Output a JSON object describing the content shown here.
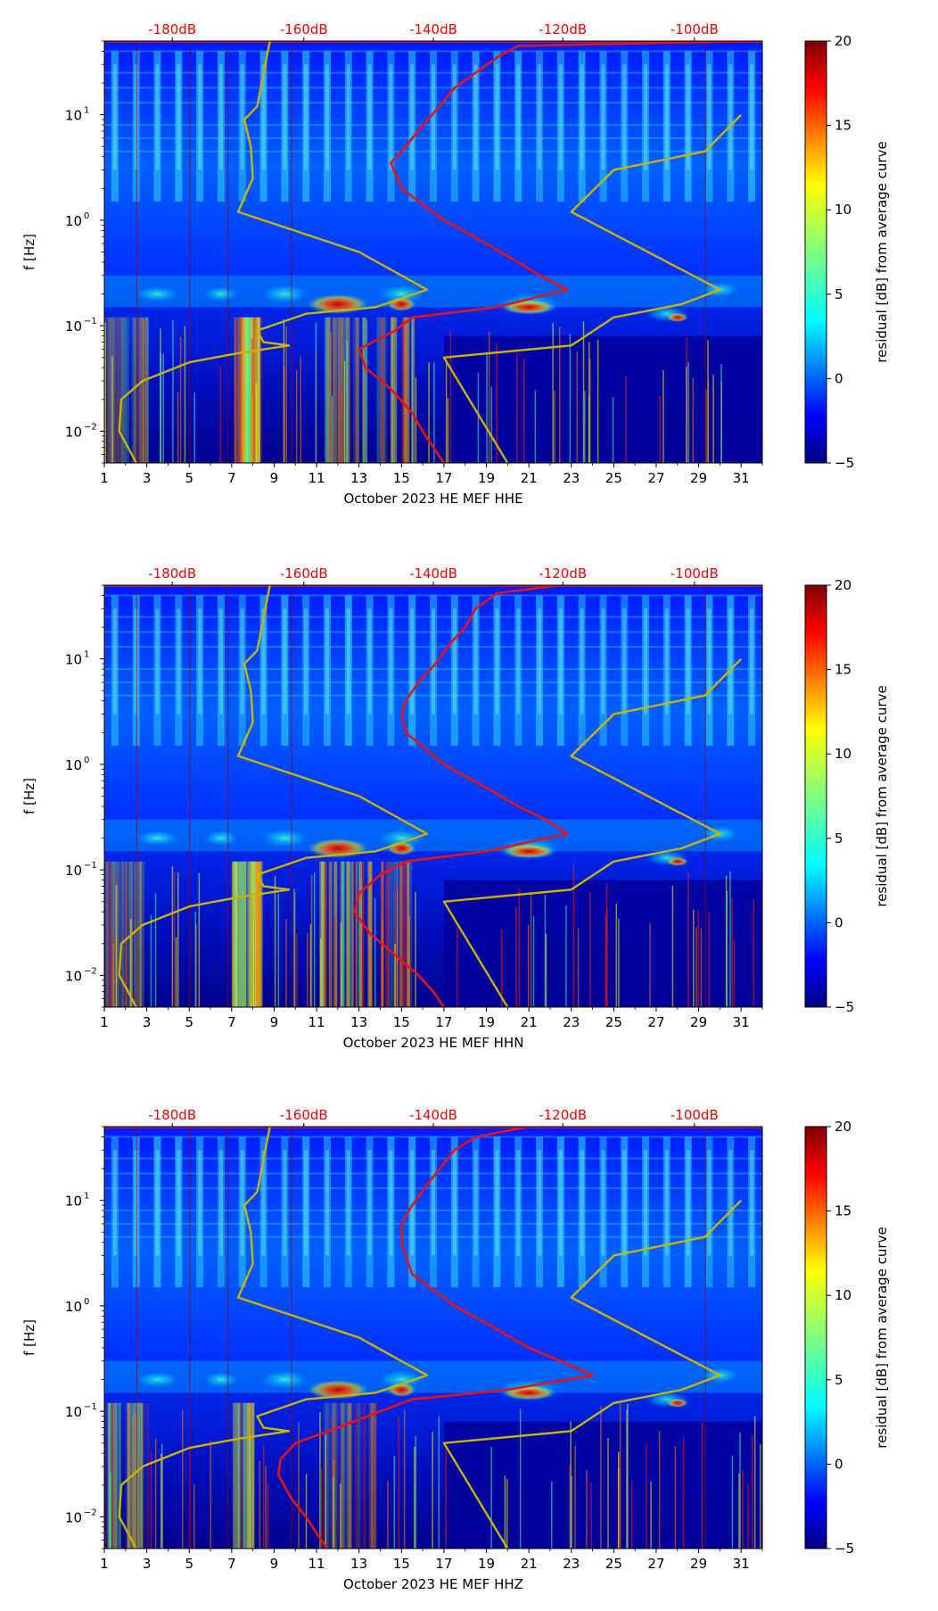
{
  "figure_title": "",
  "chart_data": [
    {
      "type": "heatmap",
      "channel": "HHE",
      "xlabel": "October 2023 HE MEF  HHE",
      "ylabel": "f [Hz]",
      "colorbar_label": "residual [dB] from average curve",
      "x_ticks": [
        "1",
        "3",
        "5",
        "7",
        "9",
        "11",
        "13",
        "15",
        "17",
        "19",
        "21",
        "23",
        "25",
        "27",
        "29",
        "31"
      ],
      "y_ticks": [
        {
          "value": 10,
          "label": "10",
          "exp": "1"
        },
        {
          "value": 1,
          "label": "10",
          "exp": "0"
        },
        {
          "value": 0.1,
          "label": "10",
          "exp": "−1"
        },
        {
          "value": 0.01,
          "label": "10",
          "exp": "−2"
        }
      ],
      "top_ticks": [
        "-180dB",
        "-160dB",
        "-140dB",
        "-120dB",
        "-100dB"
      ],
      "top_tick_days": [
        4.2,
        10.4,
        16.5,
        22.6,
        28.8
      ],
      "colorbar_ticks": [
        "20",
        "15",
        "10",
        "5",
        "0",
        "−5"
      ],
      "colorbar_range": [
        -5,
        20
      ],
      "xlim": [
        1,
        32
      ],
      "ylim": [
        0.005,
        50
      ],
      "red_curve": {
        "name": "average curve",
        "f": [
          50,
          45,
          35,
          25,
          18,
          12,
          8,
          5,
          3.5,
          2,
          1,
          0.6,
          0.4,
          0.3,
          0.22,
          0.15,
          0.12,
          0.09,
          0.06,
          0.04,
          0.025,
          0.015,
          0.01,
          0.007,
          0.005
        ],
        "day": [
          31.5,
          20.5,
          19.5,
          18.5,
          17.5,
          16.8,
          16.0,
          15.2,
          14.5,
          15.0,
          17.0,
          19.0,
          20.5,
          21.5,
          22.8,
          19.5,
          15.5,
          14.7,
          13.0,
          13.3,
          14.5,
          15.5,
          16.0,
          16.5,
          17.0
        ]
      },
      "yellow_curves": [
        {
          "name": "low noise model",
          "f": [
            50,
            12,
            9,
            5,
            2.5,
            1.2,
            0.5,
            0.22,
            0.15,
            0.13,
            0.09,
            0.07,
            0.065,
            0.055,
            0.045,
            0.03,
            0.02,
            0.01,
            0.006,
            0.005
          ],
          "day": [
            8.8,
            8.2,
            7.6,
            7.9,
            8.0,
            7.3,
            13.0,
            16.2,
            13.8,
            10.5,
            8.2,
            8.5,
            9.7,
            7.3,
            5.0,
            2.8,
            1.8,
            1.7,
            2.3,
            2.5
          ]
        },
        {
          "name": "high noise model",
          "f": [
            10,
            4.5,
            3,
            1.2,
            0.22,
            0.16,
            0.12,
            0.065,
            0.05,
            0.005
          ],
          "day": [
            31.0,
            29.3,
            25.0,
            23.0,
            30.0,
            28.2,
            25.0,
            23.0,
            17.0,
            20.0
          ]
        }
      ]
    },
    {
      "type": "heatmap",
      "channel": "HHN",
      "xlabel": "October 2023 HE MEF  HHN",
      "ylabel": "f [Hz]",
      "colorbar_label": "residual [dB] from average curve",
      "x_ticks": [
        "1",
        "3",
        "5",
        "7",
        "9",
        "11",
        "13",
        "15",
        "17",
        "19",
        "21",
        "23",
        "25",
        "27",
        "29",
        "31"
      ],
      "y_ticks": [
        {
          "value": 10,
          "label": "10",
          "exp": "1"
        },
        {
          "value": 1,
          "label": "10",
          "exp": "0"
        },
        {
          "value": 0.1,
          "label": "10",
          "exp": "−1"
        },
        {
          "value": 0.01,
          "label": "10",
          "exp": "−2"
        }
      ],
      "top_ticks": [
        "-180dB",
        "-160dB",
        "-140dB",
        "-120dB",
        "-100dB"
      ],
      "top_tick_days": [
        4.2,
        10.4,
        16.5,
        22.6,
        28.8
      ],
      "colorbar_ticks": [
        "20",
        "15",
        "10",
        "5",
        "0",
        "−5"
      ],
      "colorbar_range": [
        -5,
        20
      ],
      "xlim": [
        1,
        32
      ],
      "ylim": [
        0.005,
        50
      ],
      "red_curve": {
        "name": "average curve",
        "f": [
          50,
          42,
          30,
          20,
          14,
          9,
          6,
          4,
          3,
          2,
          1,
          0.6,
          0.4,
          0.3,
          0.22,
          0.15,
          0.12,
          0.09,
          0.06,
          0.04,
          0.025,
          0.015,
          0.01,
          0.007,
          0.005
        ],
        "day": [
          22.5,
          19.5,
          18.5,
          18.0,
          17.3,
          16.6,
          15.8,
          15.2,
          15.0,
          15.2,
          17.0,
          19.0,
          20.5,
          21.8,
          22.8,
          19.0,
          15.2,
          14.0,
          13.0,
          12.8,
          13.5,
          14.8,
          15.8,
          16.5,
          17.0
        ]
      },
      "yellow_curves": [
        {
          "name": "low noise model",
          "f": [
            50,
            12,
            9,
            5,
            2.5,
            1.2,
            0.5,
            0.22,
            0.15,
            0.13,
            0.09,
            0.07,
            0.065,
            0.055,
            0.045,
            0.03,
            0.02,
            0.01,
            0.006,
            0.005
          ],
          "day": [
            8.8,
            8.2,
            7.6,
            7.9,
            8.0,
            7.3,
            13.0,
            16.2,
            13.8,
            10.5,
            8.2,
            8.5,
            9.7,
            7.3,
            5.0,
            2.8,
            1.8,
            1.7,
            2.3,
            2.5
          ]
        },
        {
          "name": "high noise model",
          "f": [
            10,
            4.5,
            3,
            1.2,
            0.22,
            0.16,
            0.12,
            0.065,
            0.05,
            0.005
          ],
          "day": [
            31.0,
            29.3,
            25.0,
            23.0,
            30.0,
            28.2,
            25.0,
            23.0,
            17.0,
            20.0
          ]
        }
      ]
    },
    {
      "type": "heatmap",
      "channel": "HHZ",
      "xlabel": "October 2023 HE MEF  HHZ",
      "ylabel": "f [Hz]",
      "colorbar_label": "residual [dB] from average curve",
      "x_ticks": [
        "1",
        "3",
        "5",
        "7",
        "9",
        "11",
        "13",
        "15",
        "17",
        "19",
        "21",
        "23",
        "25",
        "27",
        "29",
        "31"
      ],
      "y_ticks": [
        {
          "value": 10,
          "label": "10",
          "exp": "1"
        },
        {
          "value": 1,
          "label": "10",
          "exp": "0"
        },
        {
          "value": 0.1,
          "label": "10",
          "exp": "−1"
        },
        {
          "value": 0.01,
          "label": "10",
          "exp": "−2"
        }
      ],
      "top_ticks": [
        "-180dB",
        "-160dB",
        "-140dB",
        "-120dB",
        "-100dB"
      ],
      "top_tick_days": [
        4.2,
        10.4,
        16.5,
        22.6,
        28.8
      ],
      "colorbar_ticks": [
        "20",
        "15",
        "10",
        "5",
        "0",
        "−5"
      ],
      "colorbar_range": [
        -5,
        20
      ],
      "xlim": [
        1,
        32
      ],
      "ylim": [
        0.005,
        50
      ],
      "red_curve": {
        "name": "average curve",
        "f": [
          50,
          40,
          30,
          20,
          14,
          9,
          6,
          4,
          3,
          2,
          1,
          0.6,
          0.4,
          0.3,
          0.22,
          0.16,
          0.13,
          0.1,
          0.07,
          0.05,
          0.035,
          0.025,
          0.015,
          0.01,
          0.007,
          0.005
        ],
        "day": [
          21.0,
          18.5,
          17.5,
          16.8,
          16.2,
          15.5,
          15.0,
          15.0,
          15.2,
          15.5,
          17.5,
          19.5,
          21.0,
          22.5,
          24.0,
          20.0,
          15.5,
          14.0,
          12.0,
          10.0,
          9.3,
          9.2,
          9.8,
          10.5,
          11.0,
          11.5
        ]
      },
      "yellow_curves": [
        {
          "name": "low noise model",
          "f": [
            50,
            12,
            9,
            5,
            2.5,
            1.2,
            0.5,
            0.22,
            0.15,
            0.13,
            0.09,
            0.07,
            0.065,
            0.055,
            0.045,
            0.03,
            0.02,
            0.01,
            0.006,
            0.005
          ],
          "day": [
            8.8,
            8.2,
            7.6,
            7.9,
            8.0,
            7.3,
            13.0,
            16.2,
            13.8,
            10.5,
            8.2,
            8.5,
            9.7,
            7.3,
            5.0,
            2.8,
            1.8,
            1.7,
            2.3,
            2.5
          ]
        },
        {
          "name": "high noise model",
          "f": [
            10,
            4.5,
            3,
            1.2,
            0.22,
            0.16,
            0.12,
            0.065,
            0.05,
            0.005
          ],
          "day": [
            31.0,
            29.3,
            25.0,
            23.0,
            30.0,
            28.2,
            25.0,
            23.0,
            17.0,
            20.0
          ]
        }
      ]
    }
  ],
  "colors": {
    "top_tick_text": "#ff0000",
    "red_curve": "#e41414",
    "yellow_curve": "#c8b400",
    "axis": "#000000",
    "colormap": [
      "#00007f",
      "#0000ff",
      "#007fff",
      "#00ffff",
      "#7fff7f",
      "#ffff00",
      "#ff7f00",
      "#ff0000",
      "#7f0000"
    ]
  }
}
